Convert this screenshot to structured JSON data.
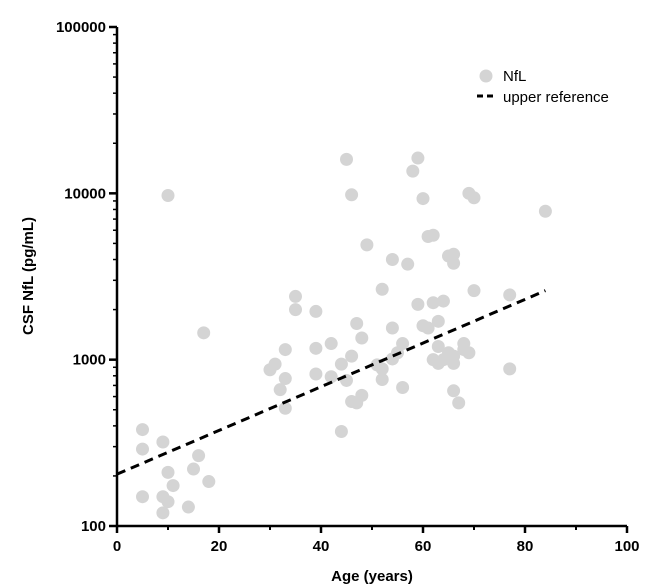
{
  "chart_data": {
    "type": "scatter",
    "title": "",
    "xlabel": "Age (years)",
    "ylabel": "CSF NfL (pg/mL)",
    "xlim": [
      0,
      100
    ],
    "ylim": [
      100,
      100000
    ],
    "yscale": "log",
    "grid": false,
    "legend_position": "top-right",
    "x_ticks": [
      0,
      20,
      40,
      60,
      80,
      100
    ],
    "x_tick_labels": [
      "0",
      "20",
      "40",
      "60",
      "80",
      "100"
    ],
    "y_ticks": [
      100,
      1000,
      10000,
      100000
    ],
    "y_tick_labels": [
      "100",
      "1000",
      "10000",
      "100000"
    ],
    "series": [
      {
        "name": "NfL",
        "kind": "scatter",
        "color": "#d4d4d4",
        "points": [
          [
            5,
            380
          ],
          [
            5,
            290
          ],
          [
            5,
            150
          ],
          [
            9,
            320
          ],
          [
            9,
            150
          ],
          [
            9,
            120
          ],
          [
            10,
            9700
          ],
          [
            10,
            210
          ],
          [
            10,
            140
          ],
          [
            11,
            175
          ],
          [
            14,
            130
          ],
          [
            15,
            220
          ],
          [
            16,
            265
          ],
          [
            17,
            1450
          ],
          [
            18,
            185
          ],
          [
            30,
            870
          ],
          [
            31,
            940
          ],
          [
            32,
            660
          ],
          [
            33,
            1150
          ],
          [
            33,
            770
          ],
          [
            33,
            510
          ],
          [
            35,
            2400
          ],
          [
            35,
            2000
          ],
          [
            39,
            1950
          ],
          [
            39,
            1170
          ],
          [
            39,
            820
          ],
          [
            42,
            1250
          ],
          [
            42,
            790
          ],
          [
            44,
            370
          ],
          [
            44,
            940
          ],
          [
            45,
            16000
          ],
          [
            45,
            750
          ],
          [
            46,
            9800
          ],
          [
            46,
            1050
          ],
          [
            46,
            560
          ],
          [
            47,
            1650
          ],
          [
            47,
            550
          ],
          [
            48,
            1350
          ],
          [
            48,
            610
          ],
          [
            49,
            4900
          ],
          [
            51,
            930
          ],
          [
            52,
            2650
          ],
          [
            52,
            880
          ],
          [
            52,
            760
          ],
          [
            54,
            4000
          ],
          [
            54,
            1550
          ],
          [
            54,
            1010
          ],
          [
            55,
            1100
          ],
          [
            56,
            1250
          ],
          [
            56,
            680
          ],
          [
            57,
            3750
          ],
          [
            58,
            13600
          ],
          [
            59,
            16300
          ],
          [
            59,
            2150
          ],
          [
            60,
            9300
          ],
          [
            60,
            1600
          ],
          [
            61,
            5500
          ],
          [
            61,
            1550
          ],
          [
            62,
            5600
          ],
          [
            62,
            2200
          ],
          [
            62,
            1000
          ],
          [
            63,
            1700
          ],
          [
            63,
            1200
          ],
          [
            63,
            950
          ],
          [
            64,
            2250
          ],
          [
            64,
            1000
          ],
          [
            65,
            4200
          ],
          [
            65,
            1100
          ],
          [
            66,
            4300
          ],
          [
            66,
            3800
          ],
          [
            66,
            1050
          ],
          [
            66,
            950
          ],
          [
            66,
            650
          ],
          [
            67,
            550
          ],
          [
            68,
            1250
          ],
          [
            68,
            1150
          ],
          [
            69,
            10000
          ],
          [
            69,
            1100
          ],
          [
            70,
            9400
          ],
          [
            70,
            2600
          ],
          [
            77,
            2450
          ],
          [
            77,
            880
          ],
          [
            84,
            7800
          ]
        ]
      },
      {
        "name": "upper reference",
        "kind": "line",
        "style": "dashed",
        "color": "#000000",
        "points": [
          [
            0,
            205
          ],
          [
            84,
            2600
          ]
        ]
      }
    ]
  }
}
